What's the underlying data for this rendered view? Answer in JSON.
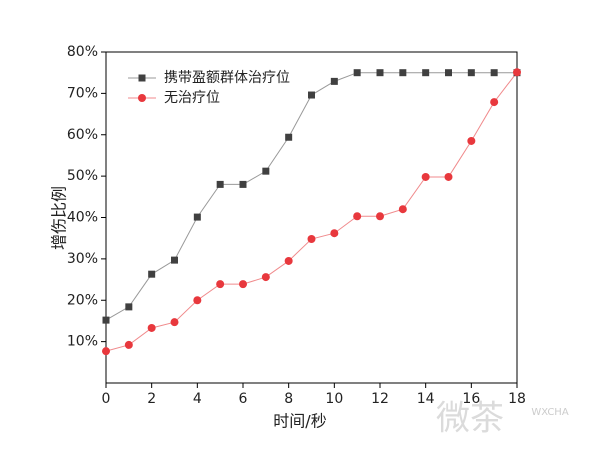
{
  "chart_data": {
    "type": "line",
    "x_label": "时间/秒",
    "y_label": "增伤比例",
    "x": [
      0,
      1,
      2,
      3,
      4,
      5,
      6,
      7,
      8,
      9,
      10,
      11,
      12,
      13,
      14,
      15,
      16,
      17,
      18
    ],
    "series": [
      {
        "name": "携带盈额群体治疗位",
        "color": "#404040",
        "line_color": "#999999",
        "marker": "square",
        "values": [
          15.2,
          18.4,
          26.3,
          29.7,
          40.1,
          48,
          48,
          51.2,
          59.4,
          69.6,
          72.9,
          75,
          75,
          75,
          75,
          75,
          75,
          75,
          75
        ]
      },
      {
        "name": "无治疗位",
        "color": "#e8383d",
        "line_color": "#f08a8c",
        "marker": "circle",
        "values": [
          7.7,
          9.2,
          13.3,
          14.7,
          20,
          23.9,
          23.9,
          25.6,
          29.5,
          34.8,
          36.2,
          40.3,
          40.3,
          42,
          49.8,
          49.8,
          58.5,
          67.9,
          75.1
        ]
      }
    ],
    "xlim": [
      0,
      18
    ],
    "xticks": [
      0,
      2,
      4,
      6,
      8,
      10,
      12,
      14,
      16,
      18
    ],
    "ylim": [
      0,
      80
    ],
    "yticks": [
      {
        "value": 10,
        "label": "10%"
      },
      {
        "value": 20,
        "label": "20%"
      },
      {
        "value": 30,
        "label": "30%"
      },
      {
        "value": 40,
        "label": "40%"
      },
      {
        "value": 50,
        "label": "50%"
      },
      {
        "value": 60,
        "label": "60%"
      },
      {
        "value": 70,
        "label": "70%"
      },
      {
        "value": 80,
        "label": "80%"
      }
    ],
    "legend": "upper left",
    "watermark": "微茶",
    "watermark_sub": "WXCHA"
  }
}
